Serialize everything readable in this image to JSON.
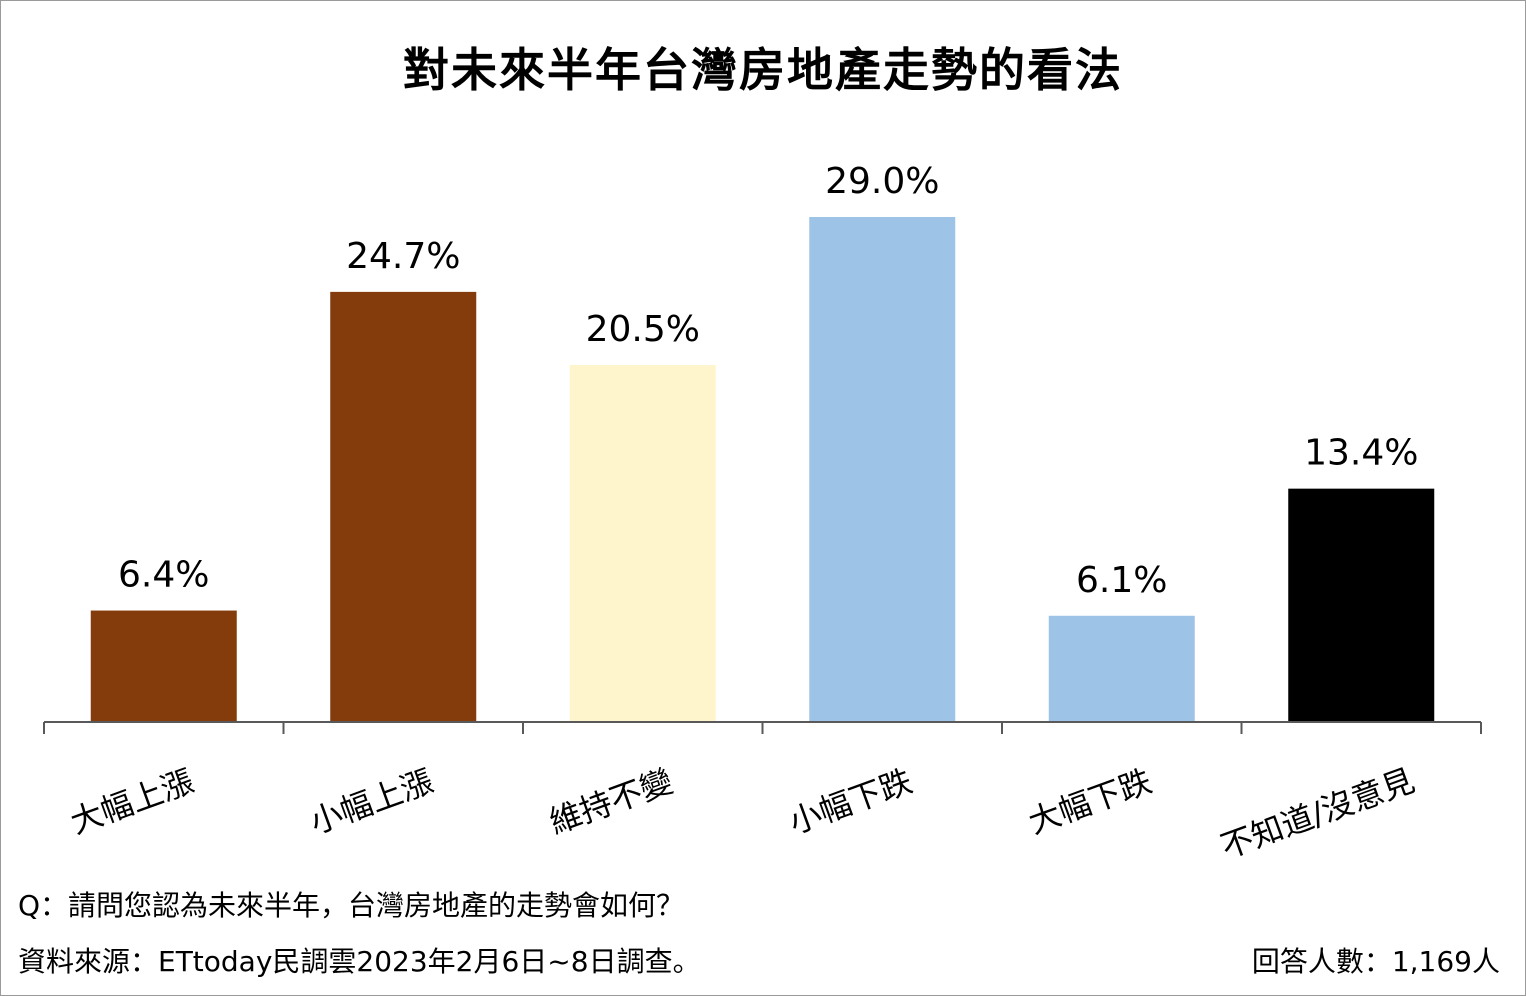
{
  "chart_data": {
    "type": "bar",
    "title": "對未來半年台灣房地產走勢的看法",
    "categories": [
      "大幅上漲",
      "小幅上漲",
      "維持不變",
      "小幅下跌",
      "大幅下跌",
      "不知道/沒意見"
    ],
    "values": [
      6.4,
      24.7,
      20.5,
      29.0,
      6.1,
      13.4
    ],
    "data_labels": [
      "6.4%",
      "24.7%",
      "20.5%",
      "29.0%",
      "6.1%",
      "13.4%"
    ],
    "colors": [
      "#843C0C",
      "#843C0C",
      "#FFF5CC",
      "#9DC3E6",
      "#9DC3E6",
      "#000000"
    ],
    "xlabel": "",
    "ylabel": "",
    "ylim": [
      0,
      29.0
    ],
    "grid": false,
    "legend": "none"
  },
  "notes": {
    "question": "Q：請問您認為未來半年，台灣房地產的走勢會如何？",
    "source": "資料來源：ETtoday民調雲2023年2月6日~8日調查。",
    "sample": "回答人數：1,169人"
  }
}
